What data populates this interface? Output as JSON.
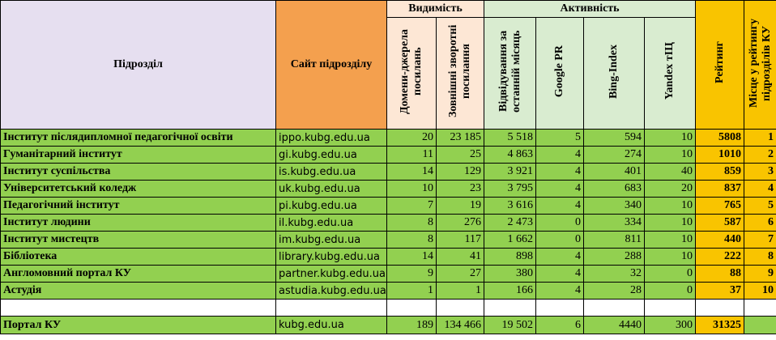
{
  "headers": {
    "unit": "Підрозділ",
    "site": "Сайт підрозділу",
    "visibility": "Видимість",
    "activity": "Активність",
    "domains": "Домени-джерела посилань",
    "backlinks": "Зовнішні зворотні посилання",
    "visits": "Відвідування за останній місяць",
    "google_pr": "Google PR",
    "bing_index": "Bing-Index",
    "yandex_tic": "Yandex тІЦ",
    "rating": "Рейтинг",
    "place": "Місце у рейтингу підрозділів КУ"
  },
  "rows": [
    {
      "name": "Інститут післядипломної педагогічної освіти",
      "site": "ippo.kubg.edu.ua",
      "domains": "20",
      "backlinks": "23 185",
      "visits": "5 518",
      "pr": "5",
      "bing": "594",
      "tic": "10",
      "rating": "5808",
      "place": "1"
    },
    {
      "name": "Гуманітарний інститут",
      "site": "gi.kubg.edu.ua",
      "domains": "11",
      "backlinks": "25",
      "visits": "4 863",
      "pr": "4",
      "bing": "274",
      "tic": "10",
      "rating": "1010",
      "place": "2"
    },
    {
      "name": "Інститут суспільства",
      "site": "is.kubg.edu.ua",
      "domains": "14",
      "backlinks": "129",
      "visits": "3 921",
      "pr": "4",
      "bing": "401",
      "tic": "40",
      "rating": "859",
      "place": "3"
    },
    {
      "name": "Університетський коледж",
      "site": "uk.kubg.edu.ua",
      "domains": "10",
      "backlinks": "23",
      "visits": "3 795",
      "pr": "4",
      "bing": "683",
      "tic": "20",
      "rating": "837",
      "place": "4"
    },
    {
      "name": "Педагогічний інститут",
      "site": "pi.kubg.edu.ua",
      "domains": "7",
      "backlinks": "19",
      "visits": "3 616",
      "pr": "4",
      "bing": "340",
      "tic": "10",
      "rating": "765",
      "place": "5"
    },
    {
      "name": "Інститут людини",
      "site": "il.kubg.edu.ua",
      "domains": "8",
      "backlinks": "276",
      "visits": "2 473",
      "pr": "0",
      "bing": "334",
      "tic": "10",
      "rating": "587",
      "place": "6"
    },
    {
      "name": "Інститут мистецтв",
      "site": "im.kubg.edu.ua",
      "domains": "8",
      "backlinks": "117",
      "visits": "1 662",
      "pr": "0",
      "bing": "811",
      "tic": "10",
      "rating": "440",
      "place": "7"
    },
    {
      "name": "Бібліотека",
      "site": "library.kubg.edu.ua",
      "domains": "14",
      "backlinks": "41",
      "visits": "898",
      "pr": "4",
      "bing": "288",
      "tic": "10",
      "rating": "222",
      "place": "8"
    },
    {
      "name": "Англомовний портал КУ",
      "site": "partner.kubg.edu.ua",
      "domains": "9",
      "backlinks": "27",
      "visits": "380",
      "pr": "4",
      "bing": "32",
      "tic": "0",
      "rating": "88",
      "place": "9"
    },
    {
      "name": "Астудія",
      "site": "astudia.kubg.edu.ua",
      "domains": "1",
      "backlinks": "1",
      "visits": "166",
      "pr": "4",
      "bing": "28",
      "tic": "0",
      "rating": "37",
      "place": "10"
    }
  ],
  "total": {
    "name": "Портал КУ",
    "site": "kubg.edu.ua",
    "domains": "189",
    "backlinks": "134 466",
    "visits": "19 502",
    "pr": "6",
    "bing": "4440",
    "tic": "300",
    "rating": "31325"
  }
}
